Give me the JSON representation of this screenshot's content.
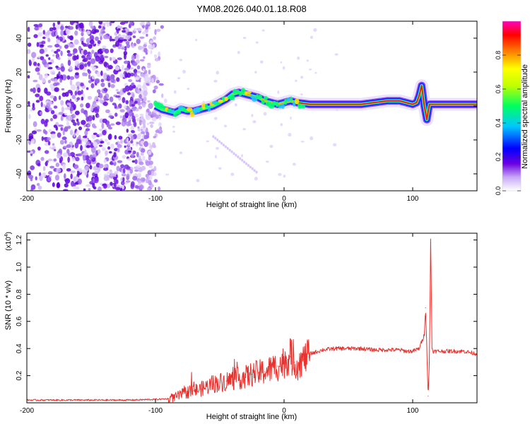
{
  "title": "YM08.2026.040.01.18.R08",
  "chart_data": [
    {
      "type": "heatmap",
      "title": "YM08.2026.040.01.18.R08",
      "xlabel": "Height of straight line (km)",
      "ylabel": "Frequency (Hz)",
      "xlim": [
        -200,
        150
      ],
      "ylim": [
        -50,
        50
      ],
      "xticks": [
        -200,
        -100,
        0,
        100
      ],
      "yticks": [
        40,
        20,
        0,
        -20,
        -40
      ],
      "colorbar": {
        "label": "Normalized spectral amplitude",
        "range": [
          0.0,
          1.0
        ],
        "ticks": [
          0.0,
          0.2,
          0.4,
          0.6,
          0.8
        ],
        "stops": [
          "#ffffff",
          "#b08af0",
          "#6a00e0",
          "#0000ff",
          "#00c8ff",
          "#00ff60",
          "#c0ff00",
          "#ffff00",
          "#ff8000",
          "#ff0000",
          "#ff00c0"
        ]
      },
      "ridge": {
        "description": "dominant frequency trace vs height",
        "x": [
          -100,
          -95,
          -90,
          -85,
          -80,
          -75,
          -70,
          -65,
          -60,
          -55,
          -50,
          -45,
          -40,
          -35,
          -30,
          -25,
          -20,
          -15,
          -10,
          -5,
          0,
          5,
          10,
          20,
          30,
          40,
          50,
          60,
          70,
          80,
          90,
          95,
          100,
          103,
          105,
          107,
          109,
          111,
          113,
          120,
          130,
          150
        ],
        "y": [
          0,
          -2,
          -3,
          -4,
          -2,
          -3,
          -3,
          -2,
          -1,
          0,
          2,
          4,
          7,
          8,
          7,
          6,
          5,
          3,
          2,
          1,
          2,
          3,
          2,
          1,
          1,
          1,
          1,
          1,
          2,
          3,
          3,
          2,
          1,
          2,
          6,
          12,
          0,
          -8,
          1,
          1,
          1,
          1
        ]
      }
    },
    {
      "type": "line",
      "xlabel": "Height of straight line (km)",
      "ylabel": "SNR (10 * v/v)",
      "yscale_label": "(x10",
      "yscale_exponent": "4",
      "ymultiplier": 10000,
      "xlim": [
        -200,
        150
      ],
      "ylim": [
        0,
        1.25
      ],
      "xticks": [
        -200,
        -100,
        0,
        100
      ],
      "yticks": [
        0.2,
        0.4,
        0.6,
        0.8,
        1.0,
        1.2
      ],
      "series": [
        {
          "name": "SNR",
          "color": "#e8302c",
          "x": [
            -200,
            -180,
            -160,
            -140,
            -120,
            -100,
            -90,
            -85,
            -80,
            -75,
            -70,
            -65,
            -60,
            -55,
            -50,
            -45,
            -40,
            -35,
            -30,
            -25,
            -20,
            -15,
            -10,
            -5,
            0,
            2,
            5,
            8,
            10,
            15,
            20,
            30,
            40,
            50,
            60,
            70,
            80,
            90,
            95,
            100,
            105,
            109,
            110,
            111,
            112,
            113,
            114,
            115,
            116,
            117,
            120,
            130,
            140,
            150
          ],
          "y": [
            0.02,
            0.02,
            0.02,
            0.02,
            0.02,
            0.025,
            0.03,
            0.04,
            0.06,
            0.08,
            0.09,
            0.1,
            0.12,
            0.14,
            0.15,
            0.16,
            0.17,
            0.18,
            0.19,
            0.21,
            0.22,
            0.23,
            0.25,
            0.27,
            0.3,
            0.33,
            0.34,
            0.3,
            0.28,
            0.32,
            0.36,
            0.39,
            0.4,
            0.4,
            0.4,
            0.39,
            0.39,
            0.39,
            0.38,
            0.38,
            0.4,
            0.5,
            0.7,
            0.4,
            0.05,
            0.3,
            1.25,
            0.4,
            0.38,
            0.38,
            0.38,
            0.38,
            0.38,
            0.36
          ]
        }
      ]
    }
  ]
}
